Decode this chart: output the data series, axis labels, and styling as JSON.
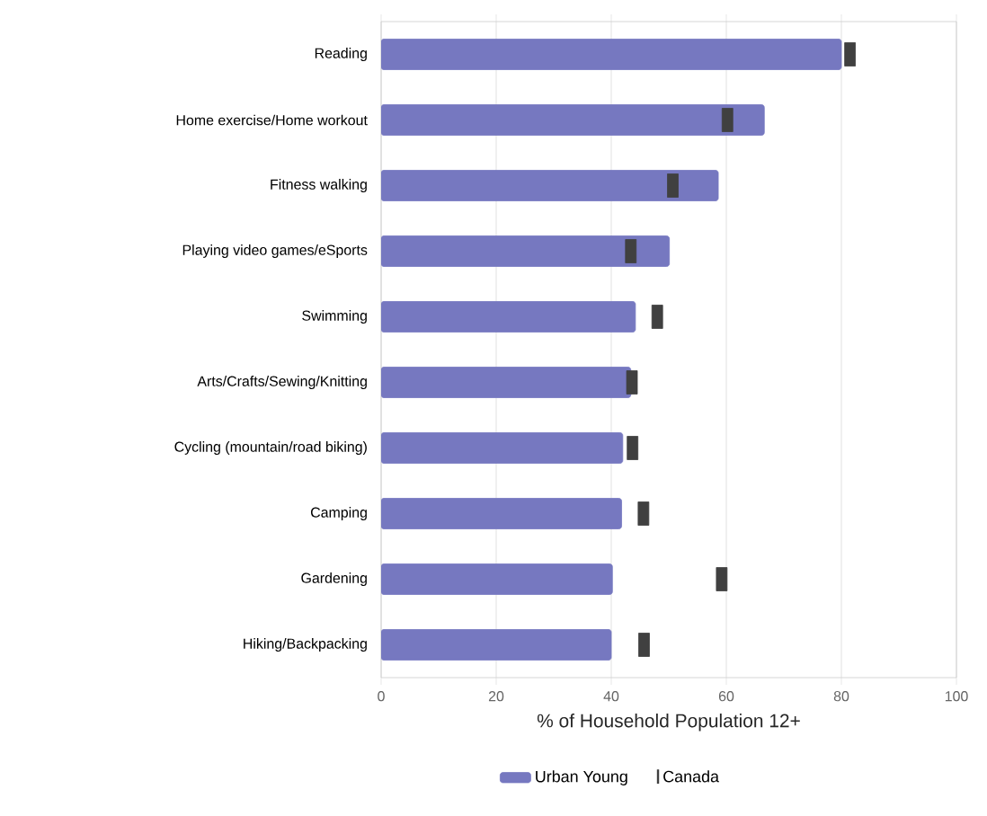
{
  "chart_data": {
    "type": "bar",
    "orientation": "horizontal",
    "xlabel": "% of Household Population 12+",
    "categories": [
      "Reading",
      "Home exercise/Home workout",
      "Fitness walking",
      "Playing video games/eSports",
      "Swimming",
      "Arts/Crafts/Sewing/Knitting",
      "Cycling (mountain/road biking)",
      "Camping",
      "Gardening",
      "Hiking/Backpacking"
    ],
    "series": [
      {
        "name": "Urban Young",
        "color": "#7678c0",
        "values": [
          80.0,
          66.6,
          58.6,
          50.1,
          44.2,
          43.4,
          42.0,
          41.8,
          40.2,
          40.0
        ]
      },
      {
        "name": "Canada",
        "type": "scatter",
        "color": "#404040",
        "values": [
          81.5,
          60.2,
          50.7,
          43.4,
          48.0,
          43.6,
          43.7,
          45.6,
          59.2,
          45.7
        ]
      }
    ],
    "xlim": [
      0,
      100
    ],
    "xticks": [
      0,
      20,
      40,
      60,
      80,
      100
    ],
    "grid": "x",
    "legend": "bottom"
  }
}
